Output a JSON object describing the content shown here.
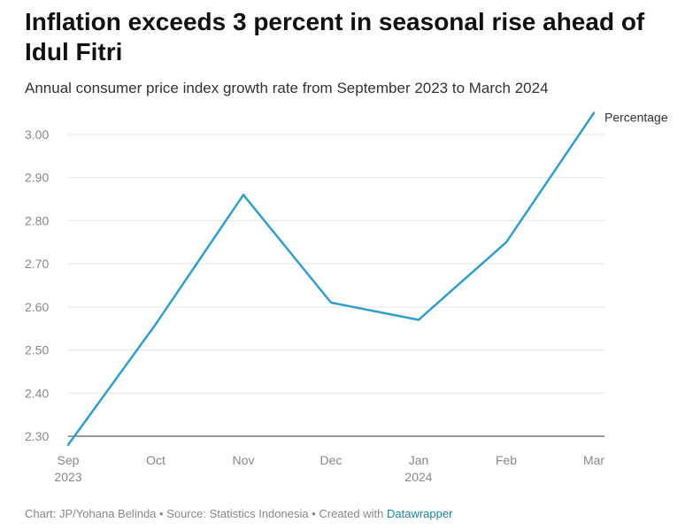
{
  "title": "Inflation exceeds 3 percent in seasonal rise ahead of Idul Fitri",
  "subtitle": "Annual consumer price index growth rate from September 2023 to March 2024",
  "footer": {
    "text": "Chart: JP/Yohana Belinda • Source: Statistics Indonesia • Created with",
    "link": "Datawrapper"
  },
  "chart_data": {
    "type": "line",
    "title": "Inflation exceeds 3 percent in seasonal rise ahead of Idul Fitri",
    "subtitle": "Annual consumer price index growth rate from September 2023 to March 2024",
    "categories": [
      "Sep",
      "Oct",
      "Nov",
      "Dec",
      "Jan",
      "Feb",
      "Mar"
    ],
    "category_sublabels": [
      "2023",
      "",
      "",
      "",
      "2024",
      "",
      ""
    ],
    "series": [
      {
        "name": "Percentage",
        "values": [
          2.28,
          2.56,
          2.86,
          2.61,
          2.57,
          2.75,
          3.05
        ],
        "color": "#2f9fc9"
      }
    ],
    "y_ticks": [
      "2.30",
      "2.40",
      "2.50",
      "2.60",
      "2.70",
      "2.80",
      "2.90",
      "3.00"
    ],
    "ylim": [
      2.28,
      3.05
    ],
    "grid": true,
    "legend": "direct label at line end",
    "xlabel": "",
    "ylabel": ""
  }
}
